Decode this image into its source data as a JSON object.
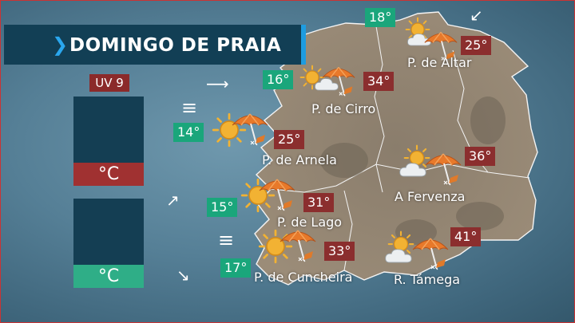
{
  "title": "DOMINGO DE PRAIA",
  "uv_label": "UV 9",
  "air_panel": {
    "icon": "thermometer-icon",
    "unit": "°C"
  },
  "water_panel": {
    "icon": "water-temperature-icon",
    "unit": "°C"
  },
  "colors": {
    "title_bg": "#123f55",
    "accent": "#1e9ce0",
    "hot": "#8b2e2e",
    "cool": "#1aa67b",
    "land": "#8f8270",
    "water": "#557f96"
  },
  "beaches": [
    {
      "name": "P. de Altar",
      "air": "25°",
      "water": "18°",
      "sky": "sun-cloud"
    },
    {
      "name": "P. de Cirro",
      "air": "34°",
      "water": "16°",
      "sky": "sun-cloud"
    },
    {
      "name": "P. de Arnela",
      "air": "25°",
      "water": "14°",
      "sky": "sun"
    },
    {
      "name": "P. de Lago",
      "air": "31°",
      "water": "15°",
      "sky": "sun"
    },
    {
      "name": "P. de Cuncheira",
      "air": "33°",
      "water": "17°",
      "sky": "sun"
    },
    {
      "name": "A Fervenza",
      "air": "36°",
      "sky": "sun-cloud"
    },
    {
      "name": "R. Támega",
      "air": "41°",
      "sky": "sun-cloud"
    }
  ],
  "wind": [
    {
      "glyph": "↙",
      "icon": "wind-arrow-icon"
    },
    {
      "glyph": "⟶",
      "icon": "wind-arrow-icon"
    },
    {
      "glyph": "↗",
      "icon": "wind-arrow-icon"
    },
    {
      "glyph": "↘",
      "icon": "wind-arrow-icon"
    },
    {
      "glyph": "≡",
      "icon": "calm-wind-icon"
    },
    {
      "glyph": "≡",
      "icon": "calm-wind-icon"
    }
  ]
}
